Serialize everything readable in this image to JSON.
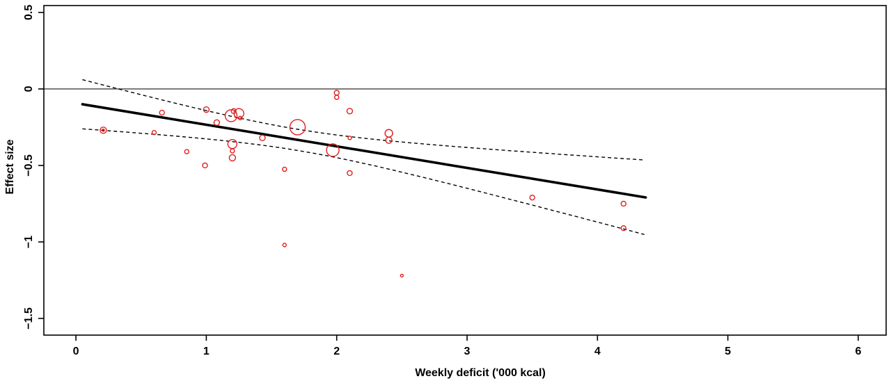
{
  "figure": {
    "kind": "meta-regression scatter (bubble) plot",
    "background": "#ffffff"
  },
  "chart_data": {
    "type": "scatter",
    "title": "",
    "xlabel": "Weekly deficit ('000 kcal)",
    "ylabel": "Effect size",
    "grid": false,
    "legend": "none",
    "xlim": [
      -0.246,
      6.214
    ],
    "ylim": [
      -1.609,
      0.545
    ],
    "x_ticks": [
      {
        "value": 0,
        "label": "0"
      },
      {
        "value": 1,
        "label": "1"
      },
      {
        "value": 2,
        "label": "2"
      },
      {
        "value": 3,
        "label": "3"
      },
      {
        "value": 4,
        "label": "4"
      },
      {
        "value": 5,
        "label": "5"
      },
      {
        "value": 6,
        "label": "6"
      }
    ],
    "y_ticks": [
      {
        "value": 0.5,
        "label": "0.5"
      },
      {
        "value": 0,
        "label": "0"
      },
      {
        "value": -0.5,
        "label": "−0.5"
      },
      {
        "value": -1,
        "label": "−1"
      },
      {
        "value": -1.5,
        "label": "−1.5"
      }
    ],
    "zero_line_y": 0,
    "points_note": "x = weekly deficit ('000 kcal), y = effect size, r = bubble radius in px (study weight)",
    "points": [
      {
        "x": 0.21,
        "y": -0.27,
        "r": 4.5
      },
      {
        "x": 0.21,
        "y": -0.27,
        "r": 1.6
      },
      {
        "x": 0.6,
        "y": -0.285,
        "r": 3.0
      },
      {
        "x": 0.66,
        "y": -0.155,
        "r": 3.5
      },
      {
        "x": 0.85,
        "y": -0.41,
        "r": 3.0
      },
      {
        "x": 1.0,
        "y": -0.135,
        "r": 4.0
      },
      {
        "x": 0.99,
        "y": -0.5,
        "r": 3.5
      },
      {
        "x": 1.08,
        "y": -0.22,
        "r": 4.0
      },
      {
        "x": 1.19,
        "y": -0.175,
        "r": 8.5
      },
      {
        "x": 1.25,
        "y": -0.16,
        "r": 7.0
      },
      {
        "x": 1.21,
        "y": -0.145,
        "r": 3.5
      },
      {
        "x": 1.26,
        "y": -0.19,
        "r": 2.5
      },
      {
        "x": 1.2,
        "y": -0.36,
        "r": 6.5
      },
      {
        "x": 1.2,
        "y": -0.405,
        "r": 3.0
      },
      {
        "x": 1.2,
        "y": -0.45,
        "r": 4.5
      },
      {
        "x": 1.43,
        "y": -0.32,
        "r": 4.0
      },
      {
        "x": 1.6,
        "y": -0.525,
        "r": 3.0
      },
      {
        "x": 1.6,
        "y": -1.02,
        "r": 2.5
      },
      {
        "x": 1.7,
        "y": -0.25,
        "r": 11.0
      },
      {
        "x": 1.97,
        "y": -0.4,
        "r": 9.0
      },
      {
        "x": 2.0,
        "y": -0.025,
        "r": 3.5
      },
      {
        "x": 2.0,
        "y": -0.055,
        "r": 3.0
      },
      {
        "x": 2.1,
        "y": -0.145,
        "r": 4.0
      },
      {
        "x": 2.1,
        "y": -0.32,
        "r": 2.5
      },
      {
        "x": 2.1,
        "y": -0.55,
        "r": 3.5
      },
      {
        "x": 2.4,
        "y": -0.29,
        "r": 5.5
      },
      {
        "x": 2.4,
        "y": -0.335,
        "r": 4.5
      },
      {
        "x": 2.5,
        "y": -1.22,
        "r": 2.0
      },
      {
        "x": 3.5,
        "y": -0.71,
        "r": 3.5
      },
      {
        "x": 4.2,
        "y": -0.75,
        "r": 3.5
      },
      {
        "x": 4.2,
        "y": -0.91,
        "r": 3.5
      }
    ],
    "regression_line": {
      "intercept": -0.093,
      "slope": -0.141,
      "x_start": 0.05,
      "x_end": 4.37
    },
    "ci_band": {
      "style": "dashed",
      "x_start": 0.05,
      "x_end": 4.36,
      "x_mean": 1.7,
      "var_intercept": 0.0048,
      "var_slope_sq": 0.0077,
      "note": "upper/lower = regression ± sqrt(var_intercept + var_slope_sq*(x - x_mean)^2)"
    },
    "colors": {
      "points": "#e21c1c",
      "regression": "#000000",
      "ci": "#000000",
      "zero_line": "#777777",
      "axis": "#000000"
    }
  }
}
